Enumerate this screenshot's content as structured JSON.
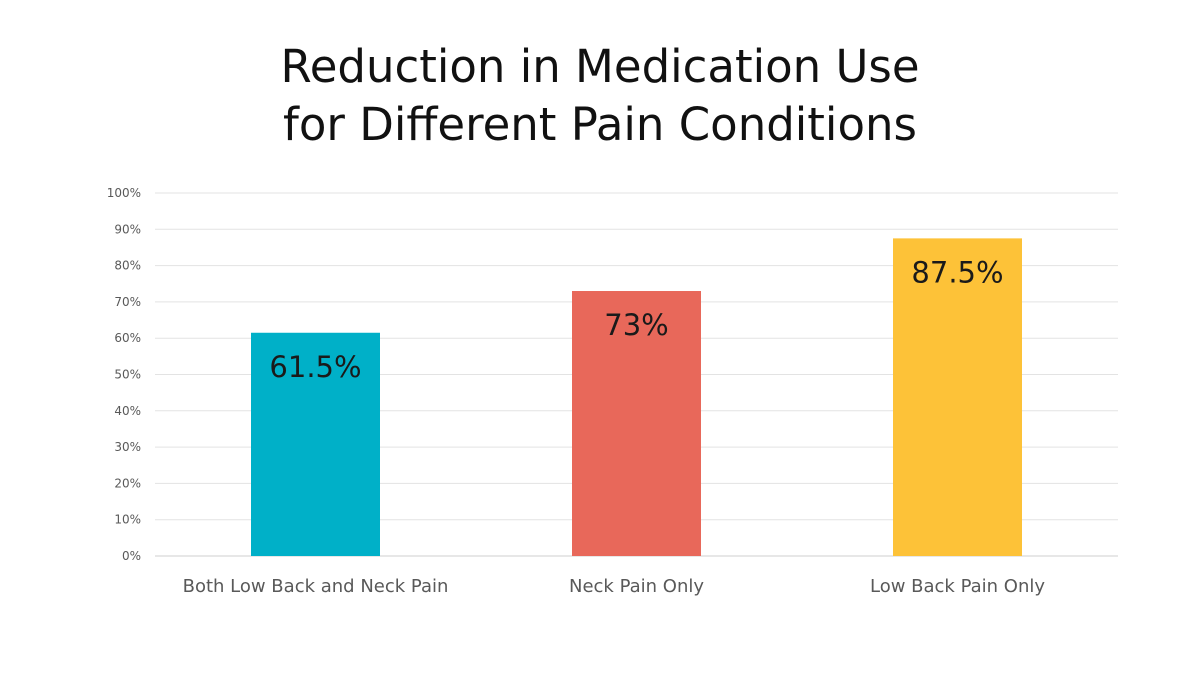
{
  "chart_data": {
    "type": "bar",
    "title_lines": [
      "Reduction in Medication Use",
      "for Different Pain Conditions"
    ],
    "categories": [
      "Both Low Back and Neck Pain",
      "Neck Pain Only",
      "Low Back Pain Only"
    ],
    "values": [
      61.5,
      73,
      87.5
    ],
    "value_labels": [
      "61.5%",
      "73%",
      "87.5%"
    ],
    "colors": [
      "#00b0c8",
      "#e8685a",
      "#fdc238"
    ],
    "ylim": [
      0,
      100
    ],
    "yticks": [
      0,
      10,
      20,
      30,
      40,
      50,
      60,
      70,
      80,
      90,
      100
    ],
    "ytick_labels": [
      "0%",
      "10%",
      "20%",
      "30%",
      "40%",
      "50%",
      "60%",
      "70%",
      "80%",
      "90%",
      "100%"
    ],
    "xlabel": "",
    "ylabel": "",
    "grid": true,
    "legend": "none"
  }
}
